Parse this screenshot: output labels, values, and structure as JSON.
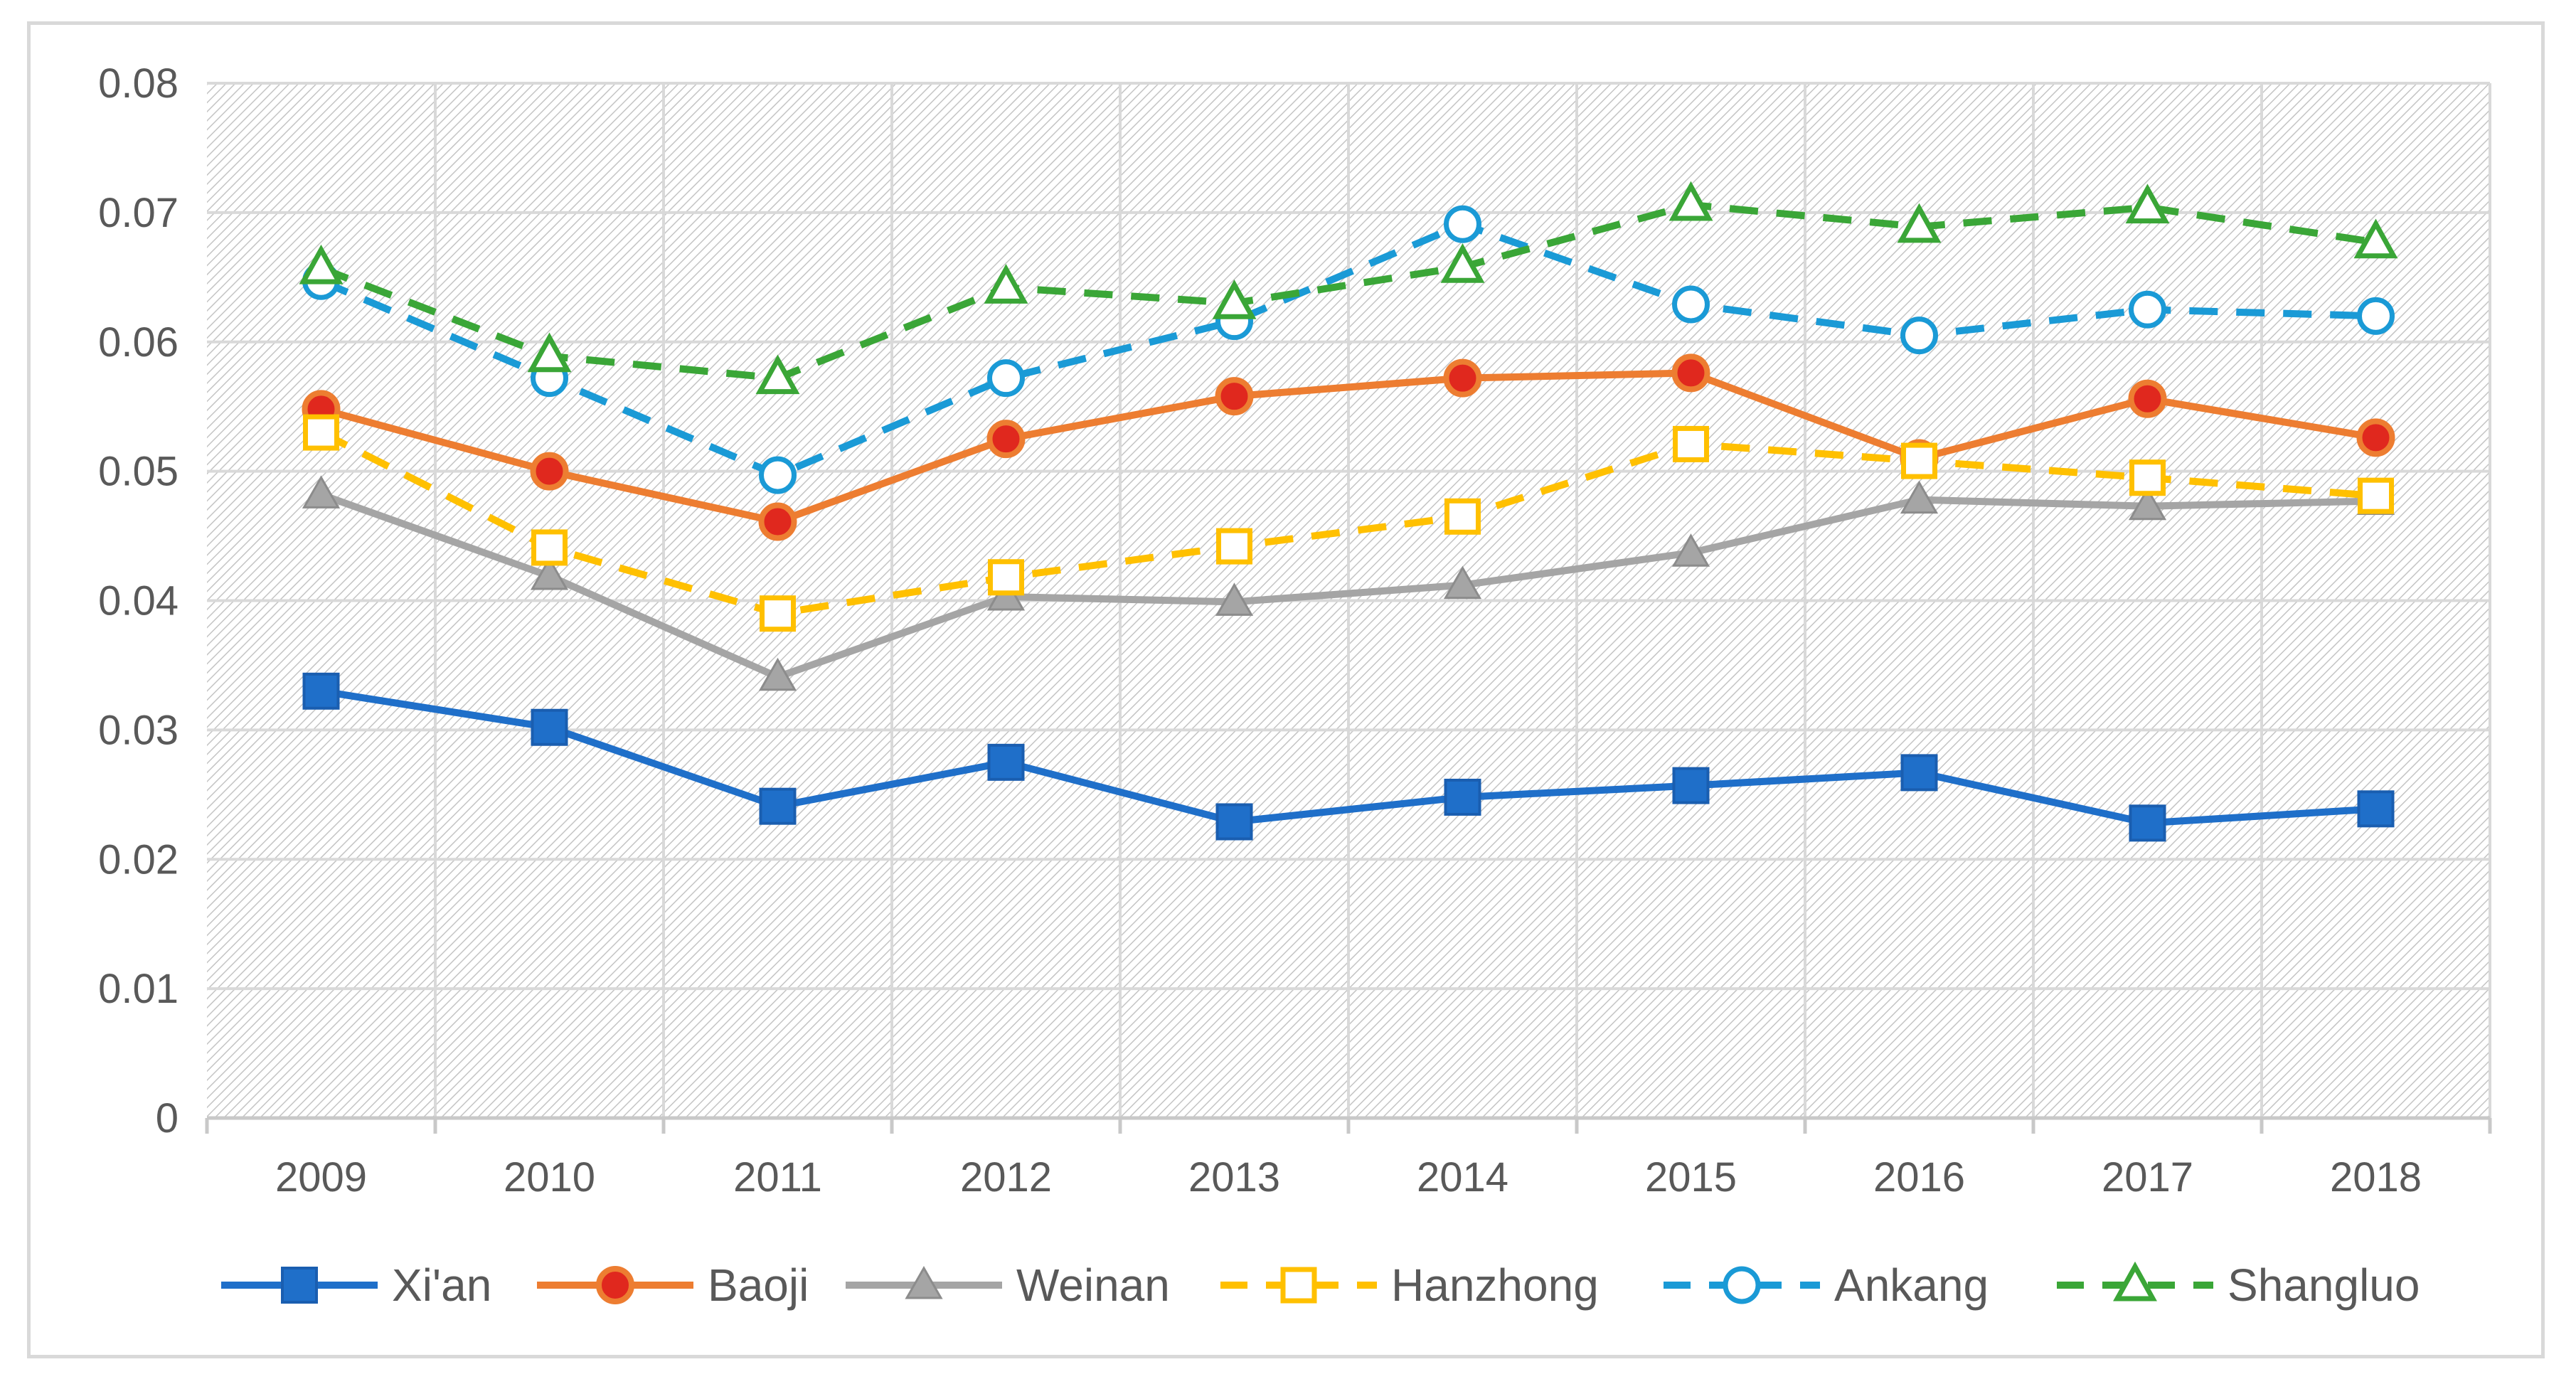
{
  "chart_data": {
    "type": "line",
    "title": "",
    "xlabel": "",
    "ylabel": "",
    "categories": [
      "2009",
      "2010",
      "2011",
      "2012",
      "2013",
      "2014",
      "2015",
      "2016",
      "2017",
      "2018"
    ],
    "ylim": [
      0,
      0.08
    ],
    "yticks": [
      "0",
      "0.01",
      "0.02",
      "0.03",
      "0.04",
      "0.05",
      "0.06",
      "0.07",
      "0.08"
    ],
    "ytick_values": [
      0,
      0.01,
      0.02,
      0.03,
      0.04,
      0.05,
      0.06,
      0.07,
      0.08
    ],
    "grid": true,
    "legend_position": "bottom",
    "series": [
      {
        "name": "Xi'an",
        "color": "#1f6fc9",
        "line": "solid",
        "marker": "square-filled",
        "values": [
          0.033,
          0.0302,
          0.0241,
          0.0275,
          0.0229,
          0.0248,
          0.0257,
          0.0267,
          0.0228,
          0.0239
        ]
      },
      {
        "name": "Baoji",
        "color": "#ed7d31",
        "line": "solid",
        "marker": "circle-red-dot",
        "values": [
          0.0548,
          0.05,
          0.0461,
          0.0525,
          0.0558,
          0.0572,
          0.0576,
          0.051,
          0.0556,
          0.0526
        ]
      },
      {
        "name": "Weinan",
        "color": "#a5a5a5",
        "line": "solid",
        "marker": "triangle-filled",
        "values": [
          0.0482,
          0.0419,
          0.0341,
          0.0403,
          0.0399,
          0.0412,
          0.0437,
          0.0478,
          0.0473,
          0.0477
        ]
      },
      {
        "name": "Hanzhong",
        "color": "#ffc000",
        "line": "dashed",
        "marker": "square-open",
        "values": [
          0.053,
          0.0441,
          0.039,
          0.0418,
          0.0442,
          0.0465,
          0.0521,
          0.0508,
          0.0495,
          0.0481
        ]
      },
      {
        "name": "Ankang",
        "color": "#1a9ad6",
        "line": "dashed",
        "marker": "circle-open",
        "values": [
          0.0647,
          0.0572,
          0.0497,
          0.0572,
          0.0616,
          0.0691,
          0.0629,
          0.0605,
          0.0625,
          0.062
        ]
      },
      {
        "name": "Shangluo",
        "color": "#3aa637",
        "line": "dashed",
        "marker": "triangle-open",
        "values": [
          0.0657,
          0.0589,
          0.0572,
          0.0642,
          0.063,
          0.0658,
          0.0706,
          0.0689,
          0.0704,
          0.0677
        ]
      }
    ]
  }
}
